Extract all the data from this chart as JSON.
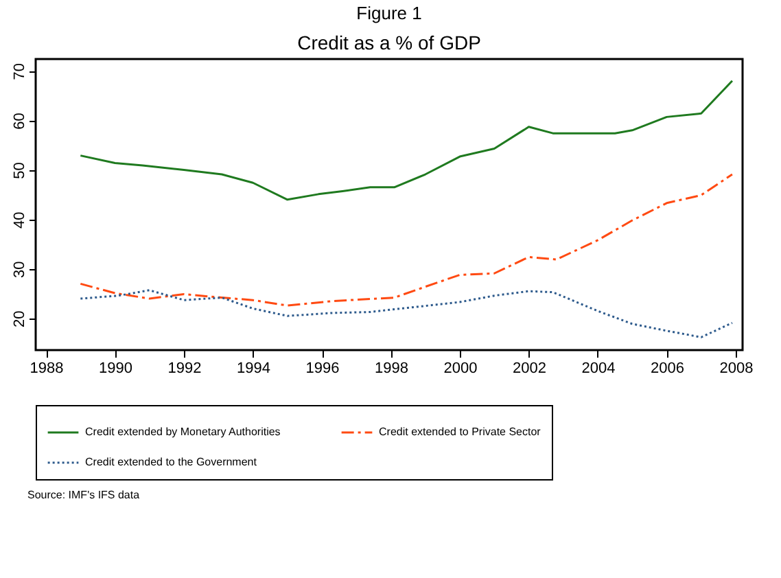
{
  "chart_data": {
    "type": "line",
    "title": "Figure 1",
    "subtitle": "Credit as a % of GDP",
    "annotations": [
      "Source: IMF's IFS data"
    ],
    "xlim": [
      1987.7,
      2008.2
    ],
    "xticks": [
      1988,
      1990,
      1992,
      1994,
      1996,
      1998,
      2000,
      2002,
      2004,
      2006,
      2008
    ],
    "ylim": [
      13.6,
      72.4
    ],
    "yticks": [
      20,
      30,
      40,
      50,
      60,
      70
    ],
    "grid": false,
    "legend": "bottom",
    "marker": "none",
    "series": [
      {
        "name": "Credit extended by Monetary Authorities",
        "color": "#1f7a1f",
        "line_style": "solid",
        "x": [
          1989.0,
          1990.0,
          1990.8,
          1992.0,
          1993.1,
          1994.0,
          1995.0,
          1995.9,
          1996.6,
          1997.4,
          1998.1,
          1999.0,
          2000.0,
          2001.0,
          2002.0,
          2002.7,
          2004.5,
          2005.0,
          2006.0,
          2007.0,
          2007.9
        ],
        "values": [
          52.9,
          51.4,
          50.9,
          50.0,
          49.1,
          47.4,
          44.0,
          45.1,
          45.7,
          46.5,
          46.5,
          49.1,
          52.7,
          54.3,
          58.7,
          57.4,
          57.4,
          58.0,
          60.7,
          61.4,
          68.0
        ]
      },
      {
        "name": "Credit extended to Private Sector",
        "color": "#ff4a12",
        "line_style": "dashed",
        "x": [
          1989.0,
          1990.0,
          1991.0,
          1992.0,
          1993.1,
          1994.0,
          1995.0,
          1996.3,
          1998.1,
          1999.0,
          2000.0,
          2001.0,
          2002.0,
          2002.8,
          2004.0,
          2005.0,
          2006.0,
          2007.0,
          2007.9
        ],
        "values": [
          27.0,
          25.1,
          24.0,
          24.9,
          24.2,
          23.7,
          22.6,
          23.5,
          24.2,
          26.4,
          28.8,
          29.1,
          32.4,
          31.9,
          35.8,
          39.8,
          43.3,
          44.9,
          49.1
        ]
      },
      {
        "name": "Credit extended to the Government",
        "color": "#2d5a8c",
        "line_style": "dotted",
        "x": [
          1989.0,
          1990.1,
          1991.0,
          1992.0,
          1993.1,
          1994.0,
          1995.0,
          1996.3,
          1997.4,
          1998.3,
          2000.0,
          2001.0,
          2002.0,
          2002.7,
          2004.0,
          2005.0,
          2006.0,
          2007.0,
          2007.9
        ],
        "values": [
          24.0,
          24.6,
          25.7,
          23.7,
          24.2,
          22.0,
          20.5,
          21.1,
          21.3,
          22.0,
          23.3,
          24.6,
          25.5,
          25.3,
          21.5,
          18.9,
          17.5,
          16.2,
          19.1
        ]
      }
    ]
  }
}
